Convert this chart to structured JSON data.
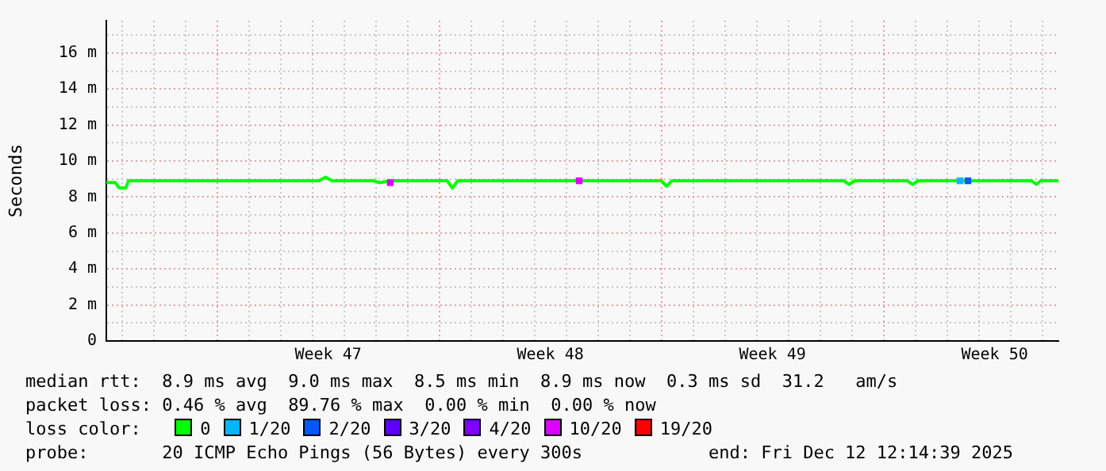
{
  "chart_data": {
    "type": "line",
    "ylabel": "Seconds",
    "legend_title": "loss color:",
    "legend": "bottom",
    "grid": true,
    "xlim": [
      "2025-11-12T12:14",
      "2025-12-12T12:14"
    ],
    "xticks": [
      {
        "value": "2025-11-13",
        "label": null
      },
      {
        "value": "2025-11-14",
        "label": null
      },
      {
        "value": "2025-11-15",
        "label": null
      },
      {
        "value": "2025-11-16",
        "label": null
      },
      {
        "value": "2025-11-17",
        "label": null
      },
      {
        "value": "2025-11-18",
        "label": null
      },
      {
        "value": "2025-11-19",
        "label": null
      },
      {
        "value": "2025-11-19T12:00",
        "label": "Week 47"
      },
      {
        "value": "2025-11-20",
        "label": null
      },
      {
        "value": "2025-11-21",
        "label": null
      },
      {
        "value": "2025-11-22",
        "label": null
      },
      {
        "value": "2025-11-23",
        "label": null
      },
      {
        "value": "2025-11-24",
        "label": null
      },
      {
        "value": "2025-11-25",
        "label": null
      },
      {
        "value": "2025-11-26",
        "label": null
      },
      {
        "value": "2025-11-26T12:00",
        "label": "Week 48"
      },
      {
        "value": "2025-11-27",
        "label": null
      },
      {
        "value": "2025-11-28",
        "label": null
      },
      {
        "value": "2025-11-29",
        "label": null
      },
      {
        "value": "2025-11-30",
        "label": null
      },
      {
        "value": "2025-12-01",
        "label": null
      },
      {
        "value": "2025-12-02",
        "label": null
      },
      {
        "value": "2025-12-03",
        "label": null
      },
      {
        "value": "2025-12-03T12:00",
        "label": "Week 49"
      },
      {
        "value": "2025-12-04",
        "label": null
      },
      {
        "value": "2025-12-05",
        "label": null
      },
      {
        "value": "2025-12-06",
        "label": null
      },
      {
        "value": "2025-12-07",
        "label": null
      },
      {
        "value": "2025-12-08",
        "label": null
      },
      {
        "value": "2025-12-09",
        "label": null
      },
      {
        "value": "2025-12-10",
        "label": null
      },
      {
        "value": "2025-12-10T12:00",
        "label": "Week 50"
      },
      {
        "value": "2025-12-11",
        "label": null
      },
      {
        "value": "2025-12-12",
        "label": null
      }
    ],
    "ylim": [
      0,
      17.8
    ],
    "yticks": [
      0,
      {
        "value": 1,
        "label": null
      },
      {
        "value": 2,
        "label": "2 m"
      },
      {
        "value": 3,
        "label": null
      },
      {
        "value": 4,
        "label": "4 m"
      },
      {
        "value": 5,
        "label": null
      },
      {
        "value": 6,
        "label": "6 m"
      },
      {
        "value": 7,
        "label": null
      },
      {
        "value": 8,
        "label": "8 m"
      },
      {
        "value": 9,
        "label": null
      },
      {
        "value": 10,
        "label": "10 m"
      },
      {
        "value": 11,
        "label": null
      },
      {
        "value": 12,
        "label": "12 m"
      },
      {
        "value": 13,
        "label": null
      },
      {
        "value": 14,
        "label": "14 m"
      },
      {
        "value": 15,
        "label": null
      },
      {
        "value": 16,
        "label": "16 m"
      },
      {
        "value": 17,
        "label": null
      }
    ],
    "series": [
      {
        "name": "0",
        "color": "#00ff00",
        "x": [
          "2025-11-12T12:14",
          "2025-11-12T19:00",
          "2025-11-12T22:00",
          "2025-11-13T03:00",
          "2025-11-13T05:00",
          "2025-11-16T00:00",
          "2025-11-19T05:00",
          "2025-11-19T10:00",
          "2025-11-19T15:00",
          "2025-11-20T22:00",
          "2025-11-21T03:00",
          "2025-11-21T12:00",
          "2025-11-23T06:00",
          "2025-11-23T10:00",
          "2025-11-23T14:00",
          "2025-11-27T09:00",
          "2025-11-30T00:00",
          "2025-11-30T04:00",
          "2025-11-30T08:00",
          "2025-12-05T18:00",
          "2025-12-05T22:00",
          "2025-12-06T02:00",
          "2025-12-07T18:00",
          "2025-12-07T22:00",
          "2025-12-08T02:00",
          "2025-12-09T10:00",
          "2025-12-11T16:00",
          "2025-12-11T19:30",
          "2025-12-11T23:00",
          "2025-12-12T12:14"
        ],
        "values": [
          8.8,
          8.8,
          8.5,
          8.5,
          8.9,
          8.9,
          8.9,
          9.1,
          8.9,
          8.9,
          8.8,
          8.9,
          8.9,
          8.5,
          8.9,
          8.9,
          8.9,
          8.6,
          8.9,
          8.9,
          8.7,
          8.9,
          8.9,
          8.7,
          8.9,
          8.9,
          8.9,
          8.7,
          8.9,
          8.9
        ]
      },
      {
        "name": "1/20",
        "type": "scatter",
        "color": "#00b8ff",
        "x": [
          "2025-12-09T09:50"
        ],
        "values": [
          8.9
        ]
      },
      {
        "name": "2/20",
        "type": "scatter",
        "color": "#0059ff",
        "x": [
          "2025-12-09T15:50"
        ],
        "values": [
          8.9
        ]
      },
      {
        "name": "3/20",
        "type": "scatter",
        "color": "#5e00ff"
      },
      {
        "name": "4/20",
        "type": "scatter",
        "color": "#7e00ff"
      },
      {
        "name": "10/20",
        "type": "scatter",
        "color": "#dd00ff",
        "x": [
          "2025-11-21T11:00",
          "2025-11-27T09:50"
        ],
        "values": [
          8.8,
          8.9
        ]
      },
      {
        "name": "19/20",
        "type": "scatter",
        "color": "#ff0000"
      }
    ],
    "annotations": [
      "median rtt:  8.9 ms avg  9.0 ms max  8.5 ms min  8.9 ms now  0.3 ms sd  31.2   am/s",
      "packet loss: 0.46 % avg  89.76 % max  0.00 % min  0.00 % now",
      "probe:       20 ICMP Echo Pings (56 Bytes) every 300s            end: Fri Dec 12 12:14:39 2025"
    ]
  }
}
